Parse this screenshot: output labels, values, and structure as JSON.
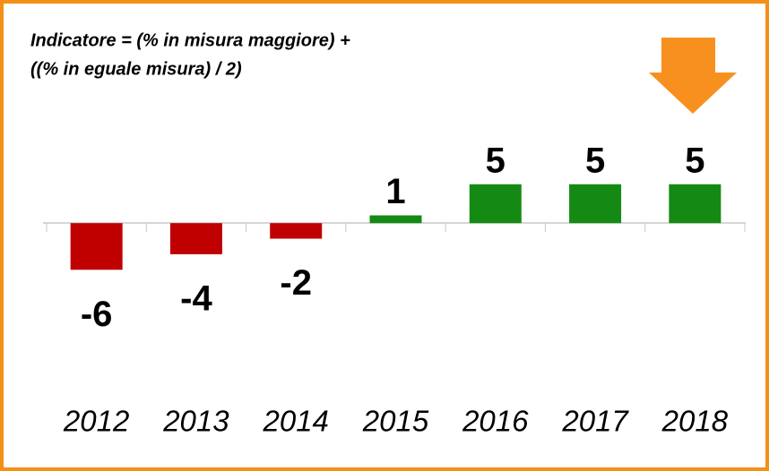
{
  "chart_data": {
    "type": "bar",
    "annotation": [
      "Indicatore = (% in misura maggiore) +",
      "((% in eguale misura) / 2)"
    ],
    "categories": [
      "2012",
      "2013",
      "2014",
      "2015",
      "2016",
      "2017",
      "2018"
    ],
    "values": [
      -6,
      -4,
      -2,
      1,
      5,
      5,
      5
    ],
    "colors": [
      "#c00000",
      "#c00000",
      "#c00000",
      "#148a14",
      "#148a14",
      "#148a14",
      "#148a14"
    ],
    "ylim": [
      -10,
      12
    ]
  }
}
